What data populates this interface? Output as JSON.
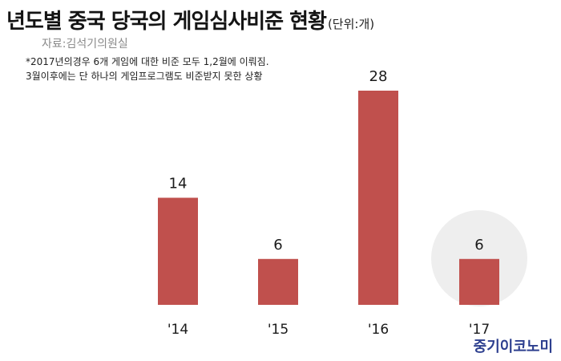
{
  "chart_data": {
    "type": "bar",
    "title": "년도별 중국 당국의 게임심사비준 현황",
    "unit": "(단위:개)",
    "source": "자료:김석기의원실",
    "notes": [
      "*2017년의경우 6개 게임에 대한 비준 모두 1,2월에 이뤄짐.",
      "3월이후에는 단 하나의 게임프로그램도 비준받지 못한 상황"
    ],
    "categories": [
      "'14",
      "'15",
      "'16",
      "'17"
    ],
    "values": [
      14,
      6,
      28,
      6
    ],
    "highlight_index": 3,
    "ylim": [
      0,
      28
    ],
    "grid": false,
    "colors": {
      "bar": "#c0504d",
      "highlight": "#eeeeee"
    }
  },
  "brand": "중기이코노미"
}
